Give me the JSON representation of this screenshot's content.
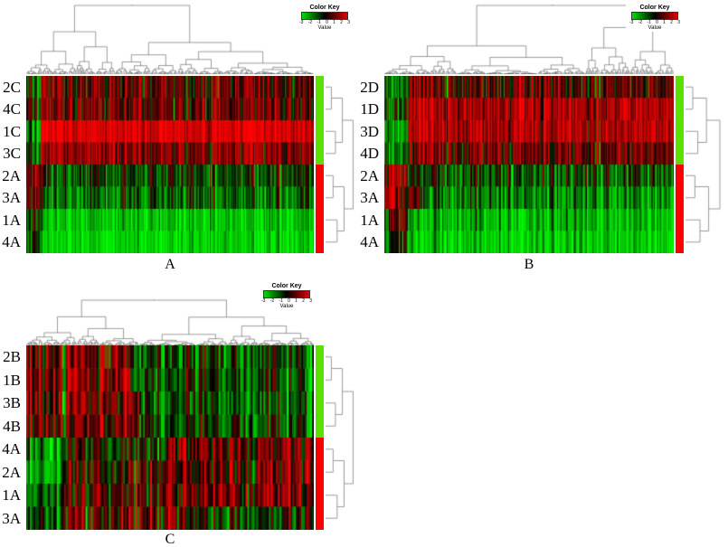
{
  "chart_data": [
    {
      "type": "heatmap",
      "panel_label": "A",
      "value_range": [
        -3,
        3
      ],
      "columns_approx": 260,
      "color_key": {
        "title": "Color Key",
        "axis_label": "Value",
        "ticks": [
          "-3",
          "-2",
          "-1",
          "0",
          "1",
          "2",
          "3"
        ],
        "gradient": [
          "#00dd00",
          "#000000",
          "#dd0000"
        ]
      },
      "row_sidebar_colors": {
        "top_cluster": "#5ce000",
        "bottom_cluster": "#fb0000"
      },
      "rows": [
        {
          "label": "2C",
          "cluster": "top",
          "segments": [
            {
              "frac": 0.05,
              "mean": -0.6,
              "sd": 0.9
            },
            {
              "frac": 0.95,
              "mean": 0.75,
              "sd": 0.95
            }
          ]
        },
        {
          "label": "4C",
          "cluster": "top",
          "segments": [
            {
              "frac": 0.05,
              "mean": 0.2,
              "sd": 0.9
            },
            {
              "frac": 0.95,
              "mean": 0.9,
              "sd": 0.9
            }
          ]
        },
        {
          "label": "1C",
          "cluster": "top",
          "segments": [
            {
              "frac": 0.05,
              "mean": -1.6,
              "sd": 0.8
            },
            {
              "frac": 0.95,
              "mean": 2.5,
              "sd": 0.55
            }
          ]
        },
        {
          "label": "3C",
          "cluster": "top",
          "segments": [
            {
              "frac": 0.05,
              "mean": -1.0,
              "sd": 0.8
            },
            {
              "frac": 0.95,
              "mean": 1.35,
              "sd": 0.8
            }
          ]
        },
        {
          "label": "2A",
          "cluster": "bottom",
          "segments": [
            {
              "frac": 0.06,
              "mean": 1.6,
              "sd": 0.9
            },
            {
              "frac": 0.94,
              "mean": -0.55,
              "sd": 0.9
            }
          ]
        },
        {
          "label": "3A",
          "cluster": "bottom",
          "segments": [
            {
              "frac": 0.06,
              "mean": 0.9,
              "sd": 1.0
            },
            {
              "frac": 0.94,
              "mean": -1.15,
              "sd": 0.9
            }
          ]
        },
        {
          "label": "1A",
          "cluster": "bottom",
          "segments": [
            {
              "frac": 0.06,
              "mean": -0.2,
              "sd": 0.9
            },
            {
              "frac": 0.94,
              "mean": -2.2,
              "sd": 0.65
            }
          ]
        },
        {
          "label": "4A",
          "cluster": "bottom",
          "segments": [
            {
              "frac": 0.06,
              "mean": -0.6,
              "sd": 0.9
            },
            {
              "frac": 0.94,
              "mean": -2.45,
              "sd": 0.6
            }
          ]
        }
      ]
    },
    {
      "type": "heatmap",
      "panel_label": "B",
      "value_range": [
        -3,
        3
      ],
      "columns_approx": 260,
      "color_key": {
        "title": "Color Key",
        "axis_label": "Value",
        "ticks": [
          "-3",
          "-2",
          "-1",
          "0",
          "1",
          "2",
          "3"
        ],
        "gradient": [
          "#00dd00",
          "#000000",
          "#dd0000"
        ]
      },
      "row_sidebar_colors": {
        "top_cluster": "#5ce000",
        "bottom_cluster": "#fb0000"
      },
      "rows": [
        {
          "label": "2D",
          "cluster": "top",
          "segments": [
            {
              "frac": 0.08,
              "mean": -0.9,
              "sd": 0.9
            },
            {
              "frac": 0.92,
              "mean": 0.8,
              "sd": 0.95
            }
          ]
        },
        {
          "label": "1D",
          "cluster": "top",
          "segments": [
            {
              "frac": 0.08,
              "mean": -0.4,
              "sd": 1.0
            },
            {
              "frac": 0.92,
              "mean": 1.9,
              "sd": 0.75
            }
          ]
        },
        {
          "label": "3D",
          "cluster": "top",
          "segments": [
            {
              "frac": 0.08,
              "mean": -1.3,
              "sd": 0.9
            },
            {
              "frac": 0.92,
              "mean": 1.9,
              "sd": 0.75
            }
          ]
        },
        {
          "label": "4D",
          "cluster": "top",
          "segments": [
            {
              "frac": 0.08,
              "mean": -0.9,
              "sd": 0.9
            },
            {
              "frac": 0.92,
              "mean": 1.05,
              "sd": 0.9
            }
          ]
        },
        {
          "label": "2A",
          "cluster": "bottom",
          "segments": [
            {
              "frac": 0.08,
              "mean": 1.4,
              "sd": 0.9
            },
            {
              "frac": 0.92,
              "mean": -0.7,
              "sd": 0.9
            }
          ]
        },
        {
          "label": "3A",
          "cluster": "bottom",
          "segments": [
            {
              "frac": 0.04,
              "mean": 2.0,
              "sd": 0.7
            },
            {
              "frac": 0.1,
              "mean": 0.2,
              "sd": 0.9
            },
            {
              "frac": 0.86,
              "mean": -1.3,
              "sd": 0.85
            }
          ]
        },
        {
          "label": "1A",
          "cluster": "bottom",
          "segments": [
            {
              "frac": 0.08,
              "mean": 0.4,
              "sd": 0.9
            },
            {
              "frac": 0.92,
              "mean": -2.0,
              "sd": 0.7
            }
          ]
        },
        {
          "label": "4A",
          "cluster": "bottom",
          "segments": [
            {
              "frac": 0.08,
              "mean": -0.3,
              "sd": 0.9
            },
            {
              "frac": 0.92,
              "mean": -2.3,
              "sd": 0.65
            }
          ]
        }
      ]
    },
    {
      "type": "heatmap",
      "panel_label": "C",
      "value_range": [
        -3,
        3
      ],
      "columns_approx": 160,
      "color_key": {
        "title": "Color Key",
        "axis_label": "Value",
        "ticks": [
          "-3",
          "-2",
          "-1",
          "0",
          "1",
          "2",
          "3"
        ],
        "gradient": [
          "#00dd00",
          "#000000",
          "#dd0000"
        ]
      },
      "row_sidebar_colors": {
        "top_cluster": "#5ce000",
        "bottom_cluster": "#fb0000"
      },
      "rows": [
        {
          "label": "2B",
          "cluster": "top",
          "segments": [
            {
              "frac": 0.36,
              "mean": 0.9,
              "sd": 1.25
            },
            {
              "frac": 0.64,
              "mean": -0.45,
              "sd": 0.85
            }
          ]
        },
        {
          "label": "1B",
          "cluster": "top",
          "segments": [
            {
              "frac": 0.36,
              "mean": 1.0,
              "sd": 1.25
            },
            {
              "frac": 0.64,
              "mean": -0.55,
              "sd": 0.85
            }
          ]
        },
        {
          "label": "3B",
          "cluster": "top",
          "segments": [
            {
              "frac": 0.4,
              "mean": 1.1,
              "sd": 1.2
            },
            {
              "frac": 0.6,
              "mean": -0.6,
              "sd": 0.85
            }
          ]
        },
        {
          "label": "4B",
          "cluster": "top",
          "segments": [
            {
              "frac": 0.4,
              "mean": 0.8,
              "sd": 1.2
            },
            {
              "frac": 0.6,
              "mean": -0.5,
              "sd": 0.85
            }
          ]
        },
        {
          "label": "4A",
          "cluster": "bottom",
          "segments": [
            {
              "frac": 0.12,
              "mean": -1.6,
              "sd": 0.8
            },
            {
              "frac": 0.38,
              "mean": -0.2,
              "sd": 0.9
            },
            {
              "frac": 0.5,
              "mean": 0.95,
              "sd": 1.0
            }
          ]
        },
        {
          "label": "2A",
          "cluster": "bottom",
          "segments": [
            {
              "frac": 0.12,
              "mean": -1.9,
              "sd": 0.7
            },
            {
              "frac": 0.38,
              "mean": 0.4,
              "sd": 1.0
            },
            {
              "frac": 0.5,
              "mean": 1.0,
              "sd": 1.0
            }
          ]
        },
        {
          "label": "1A",
          "cluster": "bottom",
          "segments": [
            {
              "frac": 0.12,
              "mean": -1.3,
              "sd": 0.8
            },
            {
              "frac": 0.43,
              "mean": 0.6,
              "sd": 1.0
            },
            {
              "frac": 0.45,
              "mean": 1.15,
              "sd": 0.95
            }
          ]
        },
        {
          "label": "3A",
          "cluster": "bottom",
          "segments": [
            {
              "frac": 0.12,
              "mean": -1.1,
              "sd": 0.8
            },
            {
              "frac": 0.5,
              "mean": 0.55,
              "sd": 1.0
            },
            {
              "frac": 0.38,
              "mean": -0.25,
              "sd": 0.9
            }
          ]
        }
      ]
    }
  ]
}
